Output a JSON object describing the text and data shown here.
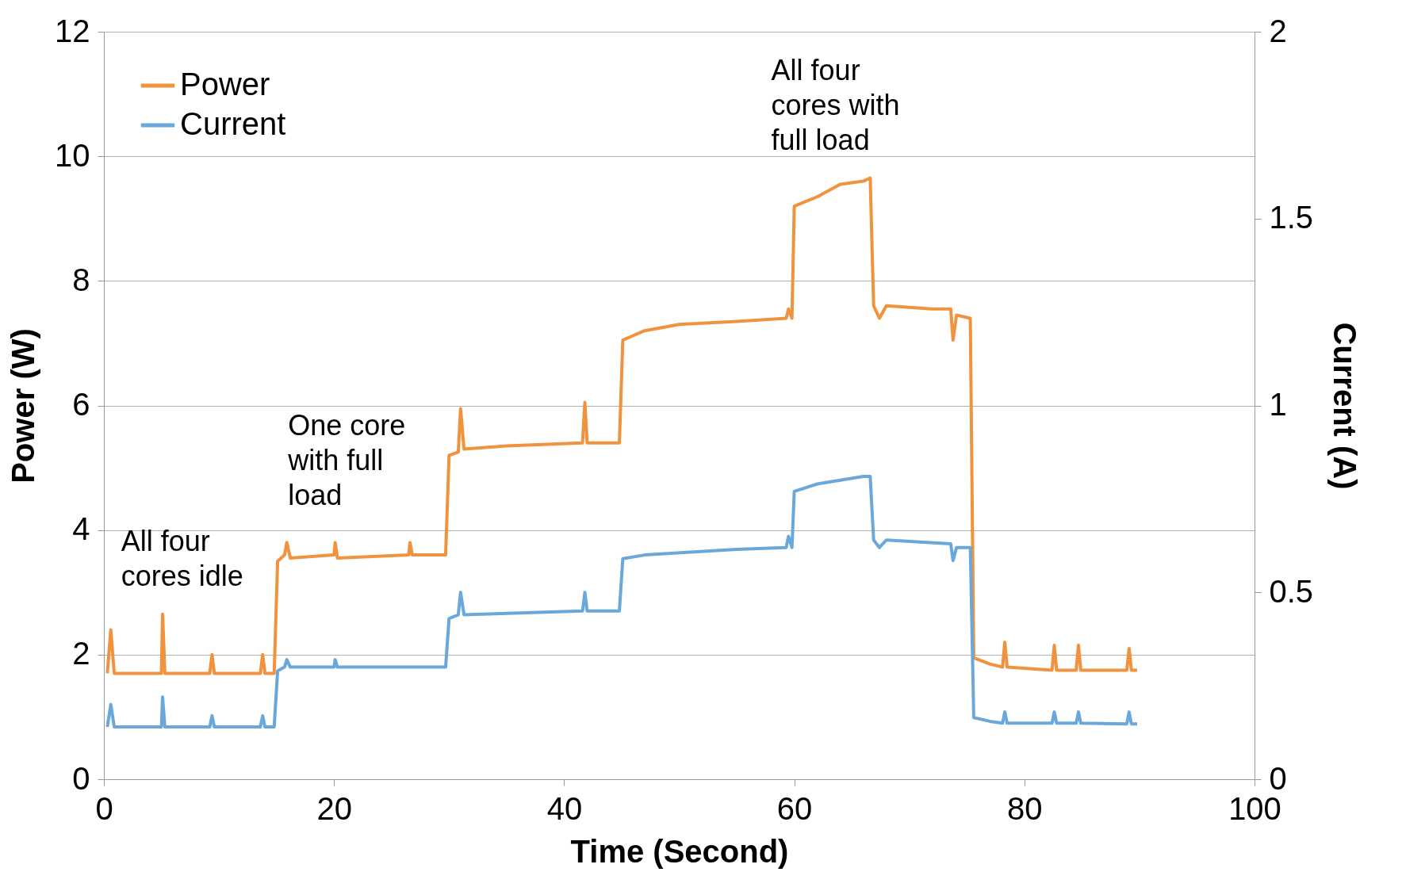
{
  "chart_data": {
    "type": "line",
    "xlabel": "Time (Second)",
    "ylabel": "Power (W)",
    "y2label": "Current (A)",
    "xlim": [
      0,
      100
    ],
    "xticks": [
      0,
      20,
      40,
      60,
      80,
      100
    ],
    "ylim": [
      0,
      12
    ],
    "yticks": [
      0,
      2,
      4,
      6,
      8,
      10,
      12
    ],
    "y2lim": [
      0,
      2
    ],
    "y2ticks": [
      0,
      0.5,
      1,
      1.5,
      2
    ],
    "grid": "y",
    "legend": "top left",
    "line_style": "solid",
    "marker": "none",
    "annotations": [
      "All four\ncores idle",
      "One core\nwith full\nload",
      "All four\ncores with\nfull load"
    ],
    "series": [
      {
        "name": "Power",
        "color": "#f0923e",
        "x": [
          0.3,
          0.6,
          0.9,
          5,
          5.1,
          5.3,
          9.2,
          9.4,
          9.6,
          13.6,
          13.8,
          14,
          14.8,
          15.1,
          15.7,
          15.9,
          16.2,
          20,
          20.1,
          20.3,
          26.5,
          26.6,
          26.8,
          29.7,
          30,
          30.8,
          31,
          31.3,
          35,
          41.6,
          41.8,
          42,
          44.8,
          45.1,
          47,
          50,
          55,
          59.3,
          59.5,
          59.8,
          60,
          62,
          64,
          66,
          66.6,
          66.9,
          67.4,
          68,
          72,
          73.6,
          73.8,
          74.1,
          75.3,
          75.6,
          77,
          78.1,
          78.3,
          78.5,
          82.4,
          82.6,
          82.8,
          84.5,
          84.7,
          84.9,
          88.9,
          89.1,
          89.3,
          89.8
        ],
        "values": [
          1.7,
          2.4,
          1.7,
          1.7,
          2.65,
          1.7,
          1.7,
          2,
          1.7,
          1.7,
          2,
          1.7,
          1.7,
          3.5,
          3.6,
          3.8,
          3.55,
          3.6,
          3.8,
          3.55,
          3.6,
          3.8,
          3.6,
          3.6,
          5.2,
          5.25,
          5.95,
          5.3,
          5.35,
          5.4,
          6.05,
          5.4,
          5.4,
          7.05,
          7.2,
          7.3,
          7.35,
          7.4,
          7.55,
          7.4,
          9.2,
          9.35,
          9.55,
          9.6,
          9.65,
          7.6,
          7.4,
          7.6,
          7.55,
          7.55,
          7.05,
          7.45,
          7.4,
          1.95,
          1.85,
          1.8,
          2.2,
          1.8,
          1.75,
          2.15,
          1.75,
          1.75,
          2.15,
          1.75,
          1.75,
          2.1,
          1.75,
          1.75
        ]
      },
      {
        "name": "Current",
        "color": "#6aa8dc",
        "axis": "y2",
        "x": [
          0.3,
          0.6,
          0.9,
          5,
          5.1,
          5.3,
          9.2,
          9.4,
          9.6,
          13.6,
          13.8,
          14,
          14.8,
          15.1,
          15.7,
          15.9,
          16.2,
          20,
          20.1,
          20.3,
          29.7,
          30,
          30.8,
          31,
          31.3,
          41.6,
          41.8,
          42,
          44.8,
          45.1,
          47,
          55,
          59.3,
          59.5,
          59.8,
          60,
          62,
          66,
          66.6,
          66.9,
          67.4,
          68,
          73.6,
          73.8,
          74.1,
          75.3,
          75.6,
          77,
          78.1,
          78.3,
          78.5,
          82.4,
          82.6,
          82.8,
          84.5,
          84.7,
          84.9,
          88.9,
          89.1,
          89.3,
          89.8
        ],
        "values": [
          0.14,
          0.2,
          0.14,
          0.14,
          0.22,
          0.14,
          0.14,
          0.17,
          0.14,
          0.14,
          0.17,
          0.14,
          0.14,
          0.29,
          0.3,
          0.32,
          0.3,
          0.3,
          0.32,
          0.3,
          0.3,
          0.43,
          0.44,
          0.5,
          0.44,
          0.45,
          0.5,
          0.45,
          0.45,
          0.59,
          0.6,
          0.615,
          0.62,
          0.65,
          0.62,
          0.77,
          0.79,
          0.81,
          0.81,
          0.64,
          0.62,
          0.64,
          0.63,
          0.585,
          0.62,
          0.62,
          0.165,
          0.155,
          0.15,
          0.18,
          0.15,
          0.15,
          0.18,
          0.15,
          0.15,
          0.18,
          0.15,
          0.148,
          0.18,
          0.148,
          0.148
        ]
      }
    ]
  }
}
